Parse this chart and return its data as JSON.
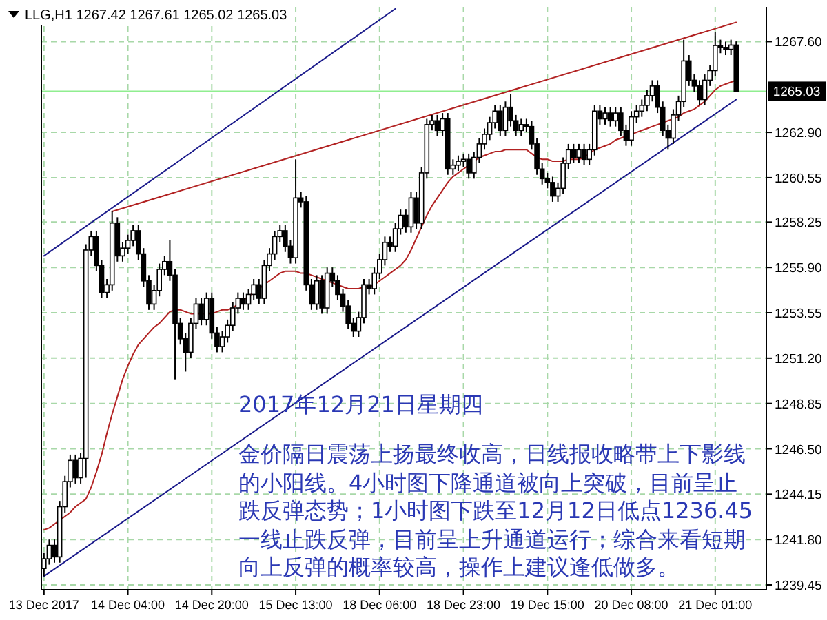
{
  "chart_data": {
    "type": "candlestick",
    "title": "LLG,H1 1267.42 1267.61 1265.02 1265.03",
    "categories": [
      "13 Dec 2017",
      null,
      null,
      null,
      null,
      null,
      null,
      null,
      null,
      null,
      null,
      null,
      null,
      null,
      null,
      null,
      "14 Dec 04:00",
      null,
      null,
      null,
      null,
      null,
      null,
      null,
      null,
      null,
      null,
      null,
      null,
      null,
      null,
      null,
      "14 Dec 20:00",
      null,
      null,
      null,
      null,
      null,
      null,
      null,
      null,
      null,
      null,
      null,
      null,
      null,
      null,
      null,
      "15 Dec 13:00",
      null,
      null,
      null,
      null,
      null,
      null,
      null,
      null,
      null,
      null,
      null,
      null,
      null,
      null,
      null,
      "18 Dec 06:00",
      null,
      null,
      null,
      null,
      null,
      null,
      null,
      null,
      null,
      null,
      null,
      null,
      null,
      null,
      null,
      "18 Dec 23:00",
      null,
      null,
      null,
      null,
      null,
      null,
      null,
      null,
      null,
      null,
      null,
      null,
      null,
      null,
      null,
      "19 Dec 15:00",
      null,
      null,
      null,
      null,
      null,
      null,
      null,
      null,
      null,
      null,
      null,
      null,
      null,
      null,
      null,
      "20 Dec 08:00",
      null,
      null,
      null,
      null,
      null,
      null,
      null,
      null,
      null,
      null,
      null,
      null,
      null,
      null,
      null,
      "21 Dec 01:00",
      null,
      null,
      null,
      null
    ],
    "ohlc": [
      [
        1240.3,
        1241.1,
        1239.9,
        1240.8
      ],
      [
        1240.8,
        1241.8,
        1240.5,
        1241.5
      ],
      [
        1241.5,
        1241.8,
        1240.6,
        1240.9
      ],
      [
        1240.9,
        1243.8,
        1240.6,
        1243.5
      ],
      [
        1243.5,
        1245.1,
        1243.2,
        1244.8
      ],
      [
        1244.8,
        1246.2,
        1244.5,
        1245.9
      ],
      [
        1245.9,
        1246.2,
        1244.7,
        1245.0
      ],
      [
        1245.0,
        1246.3,
        1244.7,
        1246.0
      ],
      [
        1246.0,
        1257.1,
        1245.0,
        1256.8
      ],
      [
        1256.8,
        1257.8,
        1256.5,
        1257.5
      ],
      [
        1257.5,
        1257.8,
        1255.7,
        1256.0
      ],
      [
        1256.0,
        1256.3,
        1254.3,
        1254.6
      ],
      [
        1254.6,
        1255.3,
        1254.3,
        1255.0
      ],
      [
        1255.0,
        1258.8,
        1254.7,
        1258.2
      ],
      [
        1258.2,
        1258.5,
        1256.2,
        1256.5
      ],
      [
        1256.5,
        1257.2,
        1256.2,
        1256.9
      ],
      [
        1256.9,
        1257.6,
        1256.6,
        1257.3
      ],
      [
        1257.3,
        1258.1,
        1257.0,
        1257.8
      ],
      [
        1257.8,
        1258.1,
        1256.3,
        1256.6
      ],
      [
        1256.6,
        1256.9,
        1254.9,
        1255.2
      ],
      [
        1255.2,
        1255.5,
        1253.7,
        1254.0
      ],
      [
        1254.0,
        1255.0,
        1253.7,
        1254.7
      ],
      [
        1254.7,
        1256.1,
        1254.4,
        1255.8
      ],
      [
        1255.8,
        1256.5,
        1255.5,
        1256.2
      ],
      [
        1256.2,
        1257.3,
        1255.2,
        1255.5
      ],
      [
        1255.5,
        1255.8,
        1250.1,
        1253.0
      ],
      [
        1253.0,
        1253.3,
        1251.9,
        1252.2
      ],
      [
        1252.2,
        1252.5,
        1250.5,
        1251.5
      ],
      [
        1251.5,
        1253.3,
        1251.2,
        1253.0
      ],
      [
        1253.0,
        1254.3,
        1252.7,
        1254.0
      ],
      [
        1254.0,
        1254.3,
        1252.9,
        1253.2
      ],
      [
        1253.2,
        1254.6,
        1252.9,
        1254.3
      ],
      [
        1254.3,
        1254.6,
        1252.2,
        1252.5
      ],
      [
        1252.5,
        1252.8,
        1251.5,
        1251.8
      ],
      [
        1251.8,
        1252.6,
        1251.5,
        1252.3
      ],
      [
        1252.3,
        1253.2,
        1252.0,
        1252.9
      ],
      [
        1252.9,
        1254.1,
        1252.6,
        1253.8
      ],
      [
        1253.8,
        1254.6,
        1253.5,
        1254.3
      ],
      [
        1254.3,
        1254.6,
        1253.7,
        1254.0
      ],
      [
        1254.0,
        1254.8,
        1253.7,
        1254.5
      ],
      [
        1254.5,
        1255.3,
        1254.2,
        1255.0
      ],
      [
        1255.0,
        1255.3,
        1254.0,
        1254.3
      ],
      [
        1254.3,
        1256.3,
        1254.0,
        1256.0
      ],
      [
        1256.0,
        1256.9,
        1255.7,
        1256.6
      ],
      [
        1256.6,
        1257.8,
        1256.3,
        1257.5
      ],
      [
        1257.5,
        1258.1,
        1257.2,
        1257.8
      ],
      [
        1257.8,
        1258.1,
        1256.7,
        1257.0
      ],
      [
        1257.0,
        1257.3,
        1256.1,
        1256.4
      ],
      [
        1256.4,
        1261.5,
        1256.1,
        1259.5
      ],
      [
        1259.5,
        1259.8,
        1259.0,
        1259.3
      ],
      [
        1259.3,
        1259.6,
        1254.7,
        1255.0
      ],
      [
        1255.0,
        1255.3,
        1253.7,
        1254.0
      ],
      [
        1254.0,
        1255.5,
        1253.7,
        1255.2
      ],
      [
        1255.2,
        1255.5,
        1253.5,
        1253.8
      ],
      [
        1253.8,
        1255.9,
        1253.5,
        1255.6
      ],
      [
        1255.6,
        1255.9,
        1254.9,
        1255.2
      ],
      [
        1255.2,
        1255.5,
        1254.2,
        1254.5
      ],
      [
        1254.5,
        1254.8,
        1253.6,
        1253.9
      ],
      [
        1253.9,
        1254.2,
        1252.7,
        1253.0
      ],
      [
        1253.0,
        1253.3,
        1252.3,
        1252.6
      ],
      [
        1252.6,
        1253.6,
        1252.3,
        1253.3
      ],
      [
        1253.3,
        1255.3,
        1253.0,
        1255.0
      ],
      [
        1255.0,
        1255.3,
        1254.5,
        1254.8
      ],
      [
        1254.8,
        1255.9,
        1254.5,
        1255.6
      ],
      [
        1255.6,
        1256.6,
        1255.3,
        1256.3
      ],
      [
        1256.3,
        1257.5,
        1256.0,
        1257.2
      ],
      [
        1257.2,
        1257.5,
        1256.7,
        1257.0
      ],
      [
        1257.0,
        1258.2,
        1256.7,
        1257.9
      ],
      [
        1257.9,
        1258.9,
        1257.6,
        1258.6
      ],
      [
        1258.6,
        1258.9,
        1257.7,
        1258.0
      ],
      [
        1258.0,
        1259.8,
        1257.7,
        1259.5
      ],
      [
        1259.5,
        1259.8,
        1257.9,
        1258.2
      ],
      [
        1258.2,
        1261.1,
        1257.9,
        1260.8
      ],
      [
        1260.8,
        1263.6,
        1260.5,
        1263.3
      ],
      [
        1263.3,
        1263.8,
        1263.0,
        1263.5
      ],
      [
        1263.5,
        1263.8,
        1262.7,
        1263.0
      ],
      [
        1263.0,
        1263.9,
        1262.7,
        1263.6
      ],
      [
        1263.6,
        1263.9,
        1260.7,
        1261.0
      ],
      [
        1261.0,
        1261.5,
        1260.7,
        1261.2
      ],
      [
        1261.2,
        1261.7,
        1260.9,
        1261.4
      ],
      [
        1261.4,
        1261.8,
        1261.1,
        1261.5
      ],
      [
        1261.5,
        1261.8,
        1260.5,
        1260.8
      ],
      [
        1260.8,
        1261.9,
        1260.5,
        1261.6
      ],
      [
        1261.6,
        1262.6,
        1261.3,
        1262.3
      ],
      [
        1262.3,
        1263.1,
        1262.0,
        1262.8
      ],
      [
        1262.8,
        1263.7,
        1262.5,
        1263.4
      ],
      [
        1263.4,
        1264.3,
        1263.1,
        1264.0
      ],
      [
        1264.0,
        1264.3,
        1262.7,
        1263.0
      ],
      [
        1263.0,
        1264.5,
        1262.7,
        1264.2
      ],
      [
        1264.2,
        1264.9,
        1263.2,
        1263.5
      ],
      [
        1263.5,
        1263.8,
        1262.7,
        1263.0
      ],
      [
        1263.0,
        1263.6,
        1262.7,
        1263.3
      ],
      [
        1263.3,
        1263.6,
        1262.9,
        1263.2
      ],
      [
        1263.2,
        1263.5,
        1262.0,
        1262.3
      ],
      [
        1262.3,
        1262.6,
        1260.7,
        1261.0
      ],
      [
        1261.0,
        1261.3,
        1260.2,
        1260.5
      ],
      [
        1260.5,
        1260.8,
        1260.0,
        1260.3
      ],
      [
        1260.3,
        1260.6,
        1259.3,
        1259.6
      ],
      [
        1259.6,
        1260.3,
        1259.3,
        1260.0
      ],
      [
        1260.0,
        1261.6,
        1259.7,
        1261.3
      ],
      [
        1261.3,
        1262.3,
        1261.0,
        1262.0
      ],
      [
        1262.0,
        1262.3,
        1261.3,
        1261.6
      ],
      [
        1261.6,
        1262.3,
        1261.3,
        1262.0
      ],
      [
        1262.0,
        1262.3,
        1261.2,
        1261.5
      ],
      [
        1261.5,
        1262.3,
        1261.2,
        1262.0
      ],
      [
        1262.0,
        1264.3,
        1261.7,
        1264.0
      ],
      [
        1264.0,
        1264.3,
        1263.3,
        1263.6
      ],
      [
        1263.6,
        1264.2,
        1263.3,
        1263.9
      ],
      [
        1263.9,
        1264.2,
        1263.2,
        1263.5
      ],
      [
        1263.5,
        1264.2,
        1263.2,
        1263.9
      ],
      [
        1263.9,
        1264.2,
        1262.7,
        1263.0
      ],
      [
        1263.0,
        1263.3,
        1262.2,
        1262.5
      ],
      [
        1262.5,
        1264.0,
        1262.2,
        1263.7
      ],
      [
        1263.7,
        1264.3,
        1263.4,
        1264.0
      ],
      [
        1264.0,
        1264.6,
        1263.7,
        1264.3
      ],
      [
        1264.3,
        1265.1,
        1264.0,
        1264.8
      ],
      [
        1264.8,
        1265.6,
        1264.5,
        1265.3
      ],
      [
        1265.3,
        1265.6,
        1263.9,
        1264.2
      ],
      [
        1264.2,
        1264.5,
        1262.7,
        1263.0
      ],
      [
        1263.0,
        1263.3,
        1262.0,
        1262.6
      ],
      [
        1262.6,
        1264.1,
        1262.3,
        1263.8
      ],
      [
        1263.8,
        1264.8,
        1263.5,
        1264.5
      ],
      [
        1264.5,
        1267.7,
        1264.2,
        1266.6
      ],
      [
        1266.6,
        1266.9,
        1265.3,
        1265.6
      ],
      [
        1265.6,
        1265.9,
        1265.0,
        1265.3
      ],
      [
        1265.3,
        1265.6,
        1264.3,
        1264.6
      ],
      [
        1264.6,
        1265.9,
        1264.3,
        1265.6
      ],
      [
        1265.6,
        1266.4,
        1265.3,
        1266.1
      ],
      [
        1266.1,
        1268.1,
        1265.8,
        1267.4
      ],
      [
        1267.4,
        1267.7,
        1267.0,
        1267.3
      ],
      [
        1267.3,
        1267.6,
        1266.9,
        1267.2
      ],
      [
        1267.2,
        1267.7,
        1266.9,
        1267.42
      ],
      [
        1267.42,
        1267.61,
        1265.02,
        1265.03
      ]
    ],
    "series": [
      {
        "type": "line",
        "color": "#b22222",
        "values": [
          1242.3,
          1242.4,
          1242.6,
          1242.8,
          1243.0,
          1243.2,
          1243.5,
          1243.7,
          1243.9,
          1244.5,
          1245.3,
          1246.2,
          1247.3,
          1248.3,
          1249.2,
          1250.1,
          1250.8,
          1251.4,
          1251.9,
          1252.2,
          1252.5,
          1252.8,
          1253.0,
          1253.3,
          1253.6,
          1253.7,
          1253.7,
          1253.6,
          1253.5,
          1253.5,
          1253.5,
          1253.5,
          1253.5,
          1253.6,
          1253.7,
          1253.7,
          1253.8,
          1254.0,
          1254.2,
          1254.4,
          1254.6,
          1254.8,
          1255.0,
          1255.2,
          1255.4,
          1255.6,
          1255.7,
          1255.7,
          1255.7,
          1255.6,
          1255.6,
          1255.5,
          1255.4,
          1255.3,
          1255.2,
          1255.1,
          1255.0,
          1254.9,
          1254.8,
          1254.8,
          1254.8,
          1254.9,
          1254.9,
          1255.0,
          1255.2,
          1255.4,
          1255.6,
          1255.8,
          1256.0,
          1256.3,
          1256.8,
          1257.4,
          1258.0,
          1258.6,
          1259.1,
          1259.5,
          1259.9,
          1260.3,
          1260.6,
          1260.8,
          1261.0,
          1261.2,
          1261.4,
          1261.6,
          1261.7,
          1261.8,
          1261.9,
          1261.9,
          1262.0,
          1262.0,
          1262.0,
          1262.0,
          1262.0,
          1261.8,
          1261.6,
          1261.5,
          1261.5,
          1261.4,
          1261.4,
          1261.4,
          1261.5,
          1261.5,
          1261.5,
          1261.6,
          1261.8,
          1262.0,
          1262.1,
          1262.2,
          1262.3,
          1262.5,
          1262.6,
          1262.7,
          1262.8,
          1262.9,
          1263.0,
          1263.1,
          1263.2,
          1263.3,
          1263.4,
          1263.5,
          1263.6,
          1263.7,
          1263.9,
          1264.0,
          1264.1,
          1264.3,
          1264.5,
          1264.8,
          1265.1,
          1265.3,
          1265.4,
          1265.5,
          1265.6
        ]
      },
      {
        "type": "line",
        "color": "#1c1c8c",
        "values": [
          1256.5,
          null,
          null,
          null,
          null,
          null,
          null,
          null,
          null,
          null,
          null,
          null,
          null,
          null,
          null,
          null,
          null,
          null,
          null,
          null,
          null,
          null,
          null,
          null,
          null,
          null,
          null,
          null,
          null,
          null,
          null,
          null,
          null,
          null,
          null,
          null,
          null,
          null,
          null,
          null,
          null,
          null,
          null,
          null,
          null,
          null,
          null,
          null,
          null,
          null,
          null,
          null,
          null,
          null,
          null,
          null,
          null,
          null,
          null,
          null,
          null,
          null,
          null,
          null,
          null,
          null,
          null,
          1269.3,
          null,
          null,
          null,
          null,
          null,
          null,
          null,
          null,
          null,
          null,
          null,
          null,
          null,
          null,
          null,
          null,
          null,
          null,
          null,
          null,
          null,
          null,
          null,
          null,
          null,
          null,
          null,
          null,
          null,
          null,
          null,
          null,
          null,
          null,
          null,
          null,
          null,
          null,
          null,
          null,
          null,
          null,
          null,
          null,
          null,
          null,
          null,
          null,
          null,
          null,
          null,
          null,
          null,
          null,
          null,
          null,
          null,
          null,
          null,
          null,
          null,
          null,
          null,
          null,
          null
        ]
      },
      {
        "type": "line",
        "color": "#b22222",
        "values": [
          null,
          null,
          null,
          null,
          null,
          null,
          null,
          null,
          null,
          null,
          null,
          null,
          null,
          1258.8,
          null,
          null,
          null,
          null,
          null,
          null,
          null,
          null,
          null,
          null,
          null,
          null,
          null,
          null,
          null,
          null,
          null,
          null,
          null,
          null,
          null,
          null,
          null,
          null,
          null,
          null,
          null,
          null,
          null,
          null,
          null,
          null,
          null,
          null,
          null,
          null,
          null,
          null,
          null,
          null,
          null,
          null,
          null,
          null,
          null,
          null,
          null,
          null,
          null,
          null,
          null,
          null,
          null,
          null,
          null,
          null,
          null,
          null,
          null,
          null,
          null,
          null,
          null,
          null,
          null,
          null,
          null,
          null,
          null,
          null,
          null,
          null,
          null,
          null,
          null,
          null,
          null,
          null,
          null,
          null,
          null,
          null,
          null,
          null,
          null,
          null,
          null,
          null,
          null,
          null,
          null,
          null,
          null,
          null,
          null,
          null,
          null,
          null,
          null,
          null,
          null,
          null,
          null,
          null,
          null,
          null,
          null,
          null,
          null,
          null,
          null,
          null,
          null,
          null,
          null,
          null,
          null,
          null,
          1268.6
        ]
      },
      {
        "type": "line",
        "color": "#1c1c8c",
        "values": [
          1239.9,
          null,
          null,
          null,
          null,
          null,
          null,
          null,
          null,
          null,
          null,
          null,
          null,
          null,
          null,
          null,
          null,
          null,
          null,
          null,
          null,
          null,
          null,
          null,
          null,
          null,
          null,
          null,
          null,
          null,
          null,
          null,
          null,
          null,
          null,
          null,
          null,
          null,
          null,
          null,
          null,
          null,
          null,
          null,
          null,
          null,
          null,
          null,
          null,
          null,
          null,
          null,
          null,
          null,
          null,
          null,
          null,
          null,
          null,
          null,
          null,
          null,
          null,
          null,
          null,
          null,
          null,
          null,
          null,
          null,
          null,
          null,
          null,
          null,
          null,
          null,
          null,
          null,
          null,
          null,
          null,
          null,
          null,
          null,
          null,
          null,
          null,
          null,
          null,
          null,
          null,
          null,
          null,
          null,
          null,
          null,
          null,
          null,
          null,
          null,
          null,
          null,
          null,
          null,
          null,
          null,
          null,
          null,
          null,
          null,
          null,
          null,
          null,
          null,
          null,
          null,
          null,
          null,
          null,
          null,
          null,
          null,
          null,
          null,
          null,
          null,
          null,
          null,
          null,
          null,
          null,
          null,
          1264.6
        ]
      }
    ],
    "ylim": [
      1239.2,
      1269.4
    ],
    "yticks": [
      1239.45,
      {
        "value": 1241.8,
        "label": "1241.80"
      },
      1244.15,
      {
        "value": 1246.5,
        "label": "1246.50"
      },
      1248.85,
      {
        "value": 1251.2,
        "label": "1251.20"
      },
      1253.55,
      {
        "value": 1255.9,
        "label": "1255.90"
      },
      1258.25,
      1260.55,
      {
        "value": 1262.9,
        "label": "1262.90"
      },
      {
        "value": 1267.6,
        "label": "1267.60"
      }
    ],
    "ref_lines": [
      {
        "axis": "y",
        "value": 1265.03,
        "label": "1265.03",
        "color": "#90ee90"
      }
    ],
    "grid": true,
    "marker": "none",
    "line_style": "solid",
    "annotations": [
      "2017年12月21日星期四",
      "金价隔日震荡上扬最终收高，日线报收略带上下影线的小阳线。4小时图下降通道被向上突破，目前呈止跌反弹态势；1小时图下跌至12月12日低点1236.45一线止跌反弹，目前呈上升通道运行；综合来看短期向上反弹的概率较高，操作上建议逢低做多。"
    ]
  }
}
